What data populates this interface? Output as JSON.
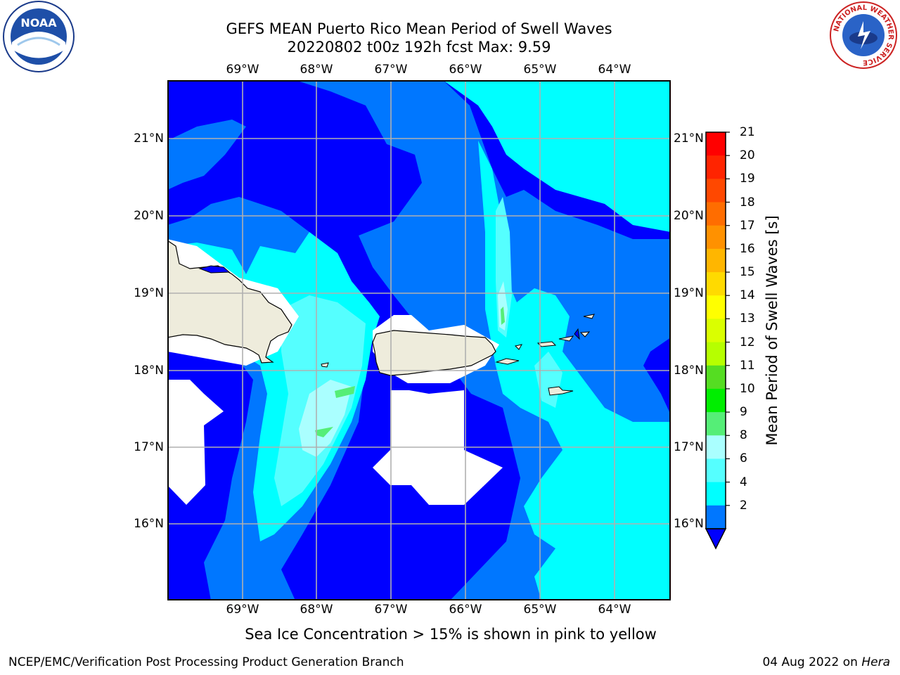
{
  "title": {
    "line1": "GEFS MEAN Puerto Rico Mean Period of Swell Waves",
    "line2": "20220802 t00z 192h fcst   Max: 9.59"
  },
  "map": {
    "lon_ticks": [
      "69°W",
      "68°W",
      "67°W",
      "66°W",
      "65°W",
      "64°W"
    ],
    "lat_ticks": [
      "21°N",
      "20°N",
      "19°N",
      "18°N",
      "17°N",
      "16°N"
    ],
    "land_color": "#eeecdc",
    "ocean_field_colors": {
      "2-4": "#0000ff",
      "4-6": "#0077ff",
      "6-8": "#00ffff",
      "8-9": "#55ffff",
      "9-10": "#aaffff",
      "10-11": "#55ee77"
    }
  },
  "colorbar": {
    "label": "Mean Period of Swell Waves [s]",
    "ticks": [
      "21",
      "20",
      "19",
      "18",
      "17",
      "16",
      "15",
      "14",
      "13",
      "12",
      "11",
      "10",
      "9",
      "8",
      "6",
      "4",
      "2"
    ],
    "colors": [
      "#ff0000",
      "#ff2400",
      "#ff4800",
      "#ff6d00",
      "#ff9100",
      "#ffb600",
      "#ffda00",
      "#ffff00",
      "#daff00",
      "#b6ff00",
      "#55dd22",
      "#00ee00",
      "#55ee77",
      "#aaffff",
      "#55ffff",
      "#00ffff",
      "#0077ff",
      "#0000ff"
    ]
  },
  "logos": {
    "noaa_text": "NOAA",
    "nws_ring": "NATIONAL WEATHER SERVICE"
  },
  "footer": {
    "note": "Sea Ice Concentration > 15% is shown in pink to yellow",
    "credit": "NCEP/EMC/Verification Post Processing Product Generation Branch",
    "date": "04 Aug 2022 on ",
    "machine": "Hera"
  }
}
